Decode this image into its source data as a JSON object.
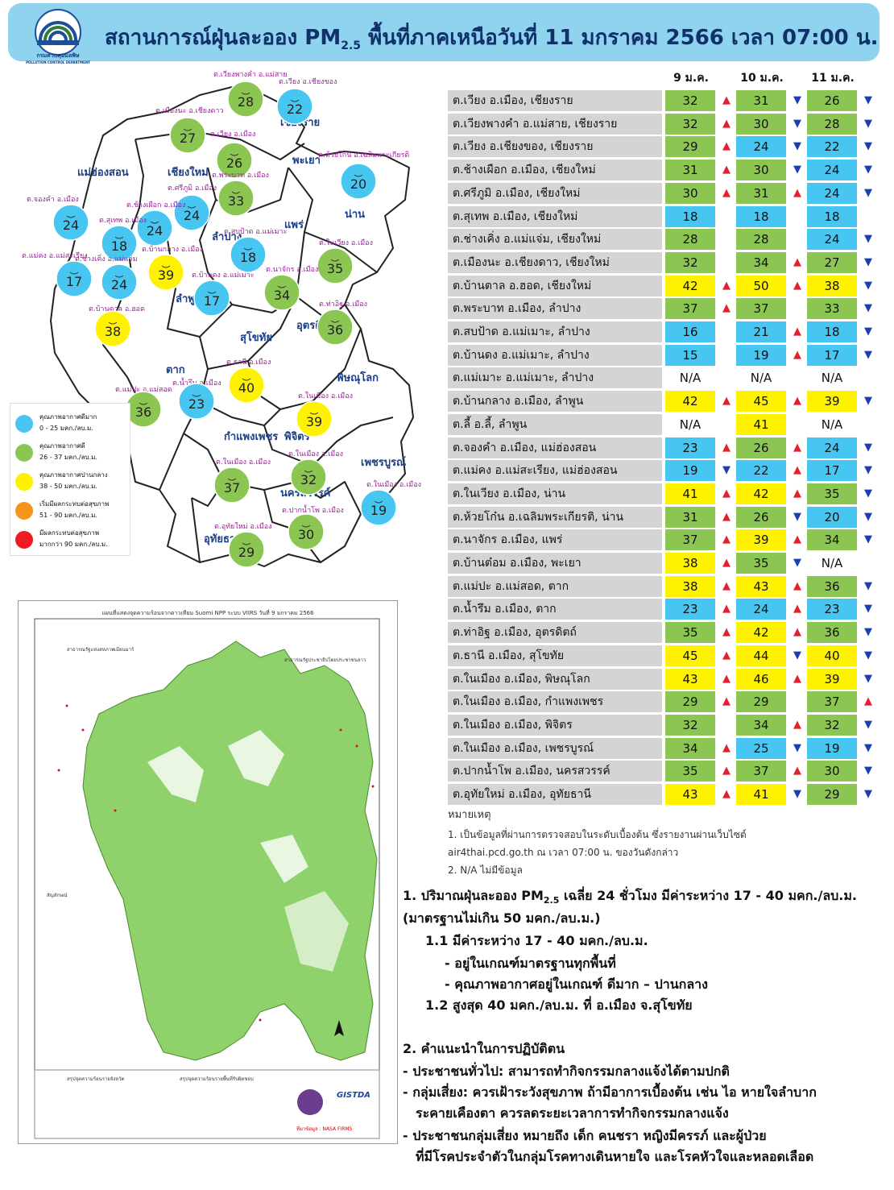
{
  "header": {
    "logo_label": "กรมควบคุมมลพิษ",
    "logo_sub": "POLLUTION CONTROL DEPARTMENT",
    "title_pre": "สถานการณ์ฝุ่นละออง PM",
    "title_sub": "2.5",
    "title_post": " พื้นที่ภาคเหนือวันที่ 11 มกราคม 2566 เวลา 07:00 น."
  },
  "colors": {
    "blue": "#47c6f2",
    "green": "#8cc652",
    "yellow": "#fff200",
    "orange": "#f7941d",
    "red": "#ed1c24",
    "header": "#8fd3ef"
  },
  "legend": [
    {
      "label": "คุณภาพอากาศดีมาก",
      "range": "0 - 25 มคก./ลบ.ม.",
      "color": "#47c6f2"
    },
    {
      "label": "คุณภาพอากาศดี",
      "range": "26 - 37 มคก./ลบ.ม.",
      "color": "#8cc652"
    },
    {
      "label": "คุณภาพอากาศปานกลาง",
      "range": "38 - 50 มคก./ลบ.ม.",
      "color": "#fff200"
    },
    {
      "label": "เริ่มมีผลกระทบต่อสุขภาพ",
      "range": "51 - 90 มคก./ลบ.ม.",
      "color": "#f7941d"
    },
    {
      "label": "มีผลกระทบต่อสุขภาพ",
      "range": "มากกว่า 90 มคก./ลบ.ม.",
      "color": "#ed1c24"
    }
  ],
  "map_provinces": [
    {
      "name": "เชียงราย"
    },
    {
      "name": "แม่ฮ่องสอน"
    },
    {
      "name": "เชียงใหม่"
    },
    {
      "name": "พะเยา"
    },
    {
      "name": "น่าน"
    },
    {
      "name": "แพร่"
    },
    {
      "name": "ลำปาง"
    },
    {
      "name": "ลำพูน"
    },
    {
      "name": "อุตรดิตถ์"
    },
    {
      "name": "สุโขทัย"
    },
    {
      "name": "ตาก"
    },
    {
      "name": "พิษณุโลก"
    },
    {
      "name": "กำแพงเพชร"
    },
    {
      "name": "พิจิตร"
    },
    {
      "name": "เพชรบูรณ์"
    },
    {
      "name": "นครสวรรค์"
    },
    {
      "name": "อุทัยธานี"
    }
  ],
  "map_circles": [
    {
      "value": "28",
      "label": "ต.เวียงพางคำ อ.แม่สาย",
      "color": "#8cc652"
    },
    {
      "value": "22",
      "label": "ต.เวียง อ.เชียงของ",
      "color": "#47c6f2"
    },
    {
      "value": "27",
      "label": "ต.เมืองนะ อ.เชียงดาว",
      "color": "#8cc652"
    },
    {
      "value": "26",
      "label": "ต.เวียง อ.เมือง",
      "color": "#8cc652"
    },
    {
      "value": "20",
      "label": "ต.ห้วยโก๋น อ.เฉลิมพระเกียรติ",
      "color": "#47c6f2"
    },
    {
      "value": "33",
      "label": "ต.พระบาท อ.เมือง",
      "color": "#8cc652"
    },
    {
      "value": "24",
      "label": "ต.ศรีภูมิ อ.เมือง",
      "color": "#47c6f2"
    },
    {
      "value": "24",
      "label": "ต.จองคำ อ.เมือง",
      "color": "#47c6f2"
    },
    {
      "value": "24",
      "label": "ต.ช้างเผือก อ.เมือง",
      "color": "#47c6f2"
    },
    {
      "value": "18",
      "label": "ต.สุเทพ อ.เมือง",
      "color": "#47c6f2"
    },
    {
      "value": "18",
      "label": "ต.สบป้าด อ.แม่เมาะ",
      "color": "#47c6f2"
    },
    {
      "value": "35",
      "label": "ต.ในเวียง อ.เมือง",
      "color": "#8cc652"
    },
    {
      "value": "17",
      "label": "ต.แม่คง อ.แม่สะเรียง",
      "color": "#47c6f2"
    },
    {
      "value": "24",
      "label": "ต.ช่างเคิ่ง อ.แม่แจ่ม",
      "color": "#47c6f2"
    },
    {
      "value": "39",
      "label": "ต.บ้านกลาง อ.เมือง",
      "color": "#fff200"
    },
    {
      "value": "17",
      "label": "ต.บ้านดง อ.แม่เมาะ",
      "color": "#47c6f2"
    },
    {
      "value": "34",
      "label": "ต.นาจักร อ.เมือง",
      "color": "#8cc652"
    },
    {
      "value": "38",
      "label": "ต.บ้านตาล อ.ฮอด",
      "color": "#fff200"
    },
    {
      "value": "36",
      "label": "ต.ท่าอิฐ อ.เมือง",
      "color": "#8cc652"
    },
    {
      "value": "40",
      "label": "ต.ธานี อ.เมือง",
      "color": "#fff200"
    },
    {
      "value": "36",
      "label": "ต.แม่ปะ อ.แม่สอด",
      "color": "#8cc652"
    },
    {
      "value": "23",
      "label": "ต.น้ำรึม อ.เมือง",
      "color": "#47c6f2"
    },
    {
      "value": "39",
      "label": "ต.ในเมือง อ.เมือง",
      "color": "#fff200"
    },
    {
      "value": "37",
      "label": "ต.ในเมือง อ.เมือง",
      "color": "#8cc652"
    },
    {
      "value": "32",
      "label": "ต.ในเมือง อ.เมือง",
      "color": "#8cc652"
    },
    {
      "value": "19",
      "label": "ต.ในเมือง อ.เมือง",
      "color": "#47c6f2"
    },
    {
      "value": "29",
      "label": "ต.อุทัยใหม่ อ.เมือง",
      "color": "#8cc652"
    },
    {
      "value": "30",
      "label": "ต.ปากน้ำโพ อ.เมือง",
      "color": "#8cc652"
    }
  ],
  "satellite_map": {
    "title": "แผนที่แสดงจุดความร้อนจากดาวเทียม Suomi NPP ระบบ VIIRS วันที่ 9 มกราคม 2566",
    "label_myanmar": "สาธารณรัฐแห่งสหภาพเมียนมาร์",
    "label_laos": "สาธารณรัฐประชาธิปไตยประชาชนลาว",
    "legend_title": "สัญลักษณ์",
    "summary_left": "สรุปจุดความร้อนรายจังหวัด",
    "summary_right": "สรุปจุดความร้อนรายพื้นที่รับผิดชอบ",
    "source": "ที่มาข้อมูล : NASA FIRMS",
    "gistda": "GISTDA"
  },
  "table": {
    "headers": [
      "9 ม.ค.",
      "10 ม.ค.",
      "11 ม.ค."
    ],
    "rows": [
      {
        "station": "ต.เวียง อ.เมือง, เชียงราย",
        "v": [
          "32",
          "31",
          "26"
        ],
        "c": [
          "g",
          "g",
          "g"
        ],
        "a": [
          "up",
          "down",
          "down"
        ]
      },
      {
        "station": "ต.เวียงพางคำ อ.แม่สาย, เชียงราย",
        "v": [
          "32",
          "30",
          "28"
        ],
        "c": [
          "g",
          "g",
          "g"
        ],
        "a": [
          "up",
          "down",
          "down"
        ]
      },
      {
        "station": "ต.เวียง อ.เชียงของ, เชียงราย",
        "v": [
          "29",
          "24",
          "22"
        ],
        "c": [
          "g",
          "b",
          "b"
        ],
        "a": [
          "up",
          "down",
          "down"
        ]
      },
      {
        "station": "ต.ช้างเผือก อ.เมือง, เชียงใหม่",
        "v": [
          "31",
          "30",
          "24"
        ],
        "c": [
          "g",
          "g",
          "b"
        ],
        "a": [
          "up",
          "down",
          "down"
        ]
      },
      {
        "station": "ต.ศรีภูมิ อ.เมือง, เชียงใหม่",
        "v": [
          "30",
          "31",
          "24"
        ],
        "c": [
          "g",
          "g",
          "b"
        ],
        "a": [
          "up",
          "up",
          "down"
        ]
      },
      {
        "station": "ต.สุเทพ อ.เมือง, เชียงใหม่",
        "v": [
          "18",
          "18",
          "18"
        ],
        "c": [
          "b",
          "b",
          "b"
        ],
        "a": [
          "",
          "",
          ""
        ]
      },
      {
        "station": "ต.ช่างเคิ่ง อ.แม่แจ่ม, เชียงใหม่",
        "v": [
          "28",
          "28",
          "24"
        ],
        "c": [
          "g",
          "g",
          "b"
        ],
        "a": [
          "",
          "",
          "down"
        ]
      },
      {
        "station": "ต.เมืองนะ อ.เชียงดาว, เชียงใหม่",
        "v": [
          "32",
          "34",
          "27"
        ],
        "c": [
          "g",
          "g",
          "g"
        ],
        "a": [
          "",
          "up",
          "down"
        ]
      },
      {
        "station": "ต.บ้านตาล อ.ฮอด, เชียงใหม่",
        "v": [
          "42",
          "50",
          "38"
        ],
        "c": [
          "y",
          "y",
          "y"
        ],
        "a": [
          "up",
          "up",
          "down"
        ]
      },
      {
        "station": "ต.พระบาท อ.เมือง, ลำปาง",
        "v": [
          "37",
          "37",
          "33"
        ],
        "c": [
          "g",
          "g",
          "g"
        ],
        "a": [
          "up",
          "",
          "down"
        ]
      },
      {
        "station": "ต.สบป้าด อ.แม่เมาะ, ลำปาง",
        "v": [
          "16",
          "21",
          "18"
        ],
        "c": [
          "b",
          "b",
          "b"
        ],
        "a": [
          "",
          "up",
          "down"
        ]
      },
      {
        "station": "ต.บ้านดง อ.แม่เมาะ, ลำปาง",
        "v": [
          "15",
          "19",
          "17"
        ],
        "c": [
          "b",
          "b",
          "b"
        ],
        "a": [
          "",
          "up",
          "down"
        ]
      },
      {
        "station": "ต.แม่เมาะ อ.แม่เมาะ, ลำปาง",
        "v": [
          "N/A",
          "N/A",
          "N/A"
        ],
        "c": [
          "n",
          "n",
          "n"
        ],
        "a": [
          "",
          "",
          ""
        ]
      },
      {
        "station": "ต.บ้านกลาง อ.เมือง, ลำพูน",
        "v": [
          "42",
          "45",
          "39"
        ],
        "c": [
          "y",
          "y",
          "y"
        ],
        "a": [
          "up",
          "up",
          "down"
        ]
      },
      {
        "station": "ต.ลี้ อ.ลี้, ลำพูน",
        "v": [
          "N/A",
          "41",
          "N/A"
        ],
        "c": [
          "n",
          "y",
          "n"
        ],
        "a": [
          "",
          "",
          ""
        ]
      },
      {
        "station": "ต.จองคำ อ.เมือง, แม่ฮ่องสอน",
        "v": [
          "23",
          "26",
          "24"
        ],
        "c": [
          "b",
          "g",
          "b"
        ],
        "a": [
          "up",
          "up",
          "down"
        ]
      },
      {
        "station": "ต.แม่คง อ.แม่สะเรียง, แม่ฮ่องสอน",
        "v": [
          "19",
          "22",
          "17"
        ],
        "c": [
          "b",
          "b",
          "b"
        ],
        "a": [
          "down",
          "up",
          "down"
        ]
      },
      {
        "station": "ต.ในเวียง อ.เมือง, น่าน",
        "v": [
          "41",
          "42",
          "35"
        ],
        "c": [
          "y",
          "y",
          "g"
        ],
        "a": [
          "up",
          "up",
          "down"
        ]
      },
      {
        "station": "ต.ห้วยโก๋น อ.เฉลิมพระเกียรติ, น่าน",
        "v": [
          "31",
          "26",
          "20"
        ],
        "c": [
          "g",
          "g",
          "b"
        ],
        "a": [
          "up",
          "down",
          "down"
        ]
      },
      {
        "station": "ต.นาจักร อ.เมือง, แพร่",
        "v": [
          "37",
          "39",
          "34"
        ],
        "c": [
          "g",
          "y",
          "g"
        ],
        "a": [
          "up",
          "up",
          "down"
        ]
      },
      {
        "station": "ต.บ้านต๋อม อ.เมือง, พะเยา",
        "v": [
          "38",
          "35",
          "N/A"
        ],
        "c": [
          "y",
          "g",
          "n"
        ],
        "a": [
          "up",
          "down",
          ""
        ]
      },
      {
        "station": "ต.แม่ปะ อ.แม่สอด, ตาก",
        "v": [
          "38",
          "43",
          "36"
        ],
        "c": [
          "y",
          "y",
          "g"
        ],
        "a": [
          "up",
          "up",
          "down"
        ]
      },
      {
        "station": "ต.น้ำรึม อ.เมือง, ตาก",
        "v": [
          "23",
          "24",
          "23"
        ],
        "c": [
          "b",
          "b",
          "b"
        ],
        "a": [
          "up",
          "up",
          "down"
        ]
      },
      {
        "station": "ต.ท่าอิฐ อ.เมือง, อุตรดิตถ์",
        "v": [
          "35",
          "42",
          "36"
        ],
        "c": [
          "g",
          "y",
          "g"
        ],
        "a": [
          "up",
          "up",
          "down"
        ]
      },
      {
        "station": "ต.ธานี อ.เมือง, สุโขทัย",
        "v": [
          "45",
          "44",
          "40"
        ],
        "c": [
          "y",
          "y",
          "y"
        ],
        "a": [
          "up",
          "down",
          "down"
        ]
      },
      {
        "station": "ต.ในเมือง อ.เมือง, พิษณุโลก",
        "v": [
          "43",
          "46",
          "39"
        ],
        "c": [
          "y",
          "y",
          "y"
        ],
        "a": [
          "up",
          "up",
          "down"
        ]
      },
      {
        "station": "ต.ในเมือง อ.เมือง, กำแพงเพชร",
        "v": [
          "29",
          "29",
          "37"
        ],
        "c": [
          "g",
          "g",
          "g"
        ],
        "a": [
          "up",
          "",
          "up"
        ]
      },
      {
        "station": "ต.ในเมือง อ.เมือง, พิจิตร",
        "v": [
          "32",
          "34",
          "32"
        ],
        "c": [
          "g",
          "g",
          "g"
        ],
        "a": [
          "",
          "up",
          "down"
        ]
      },
      {
        "station": "ต.ในเมือง อ.เมือง, เพชรบูรณ์",
        "v": [
          "34",
          "25",
          "19"
        ],
        "c": [
          "g",
          "b",
          "b"
        ],
        "a": [
          "up",
          "down",
          "down"
        ]
      },
      {
        "station": "ต.ปากน้ำโพ อ.เมือง, นครสวรรค์",
        "v": [
          "35",
          "37",
          "30"
        ],
        "c": [
          "g",
          "g",
          "g"
        ],
        "a": [
          "up",
          "up",
          "down"
        ]
      },
      {
        "station": "ต.อุทัยใหม่ อ.เมือง, อุทัยธานี",
        "v": [
          "43",
          "41",
          "29"
        ],
        "c": [
          "y",
          "y",
          "g"
        ],
        "a": [
          "up",
          "down",
          "down"
        ]
      }
    ]
  },
  "notes": {
    "heading": "หมายเหตุ",
    "n1a": "1. เป็นข้อมูลที่ผ่านการตรวจสอบในระดับเบื้องต้น ซึ่งรายงานผ่านเว็บไซต์",
    "n1b": "air4thai.pcd.go.th ณ เวลา 07:00 น. ของวันดังกล่าว",
    "n2": "2. N/A ไม่มีข้อมูล"
  },
  "summary": {
    "l1_pre": "1. ปริมาณฝุ่นละออง PM",
    "l1_sub": "2.5",
    "l1_post": " เฉลี่ย 24 ชั่วโมง มีค่าระหว่าง 17 - 40 มคก./ลบ.ม.",
    "l2": "(มาตรฐานไม่เกิน 50 มคก./ลบ.ม.)",
    "l3": "1.1 มีค่าระหว่าง 17 - 40 มคก./ลบ.ม.",
    "l4": "- อยู่ในเกณฑ์มาตรฐานทุกพื้นที่",
    "l5": "- คุณภาพอากาศอยู่ในเกณฑ์ ดีมาก – ปานกลาง",
    "l6": "1.2 สูงสุด 40 มคก./ลบ.ม. ที่ อ.เมือง จ.สุโขทัย",
    "l7": "2. คำแนะนำในการปฏิบัติตน",
    "l8": "- ประชาชนทั่วไป: สามารถทำกิจกรรมกลางแจ้งได้ตามปกติ",
    "l9": "- กลุ่มเสี่ยง: ควรเฝ้าระวังสุขภาพ ถ้ามีอาการเบื้องต้น เช่น ไอ หายใจลำบาก",
    "l10": "ระคายเคืองตา ควรลดระยะเวลาการทำกิจกรรมกลางแจ้ง",
    "l11": "- ประชาชนกลุ่มเสี่ยง หมายถึง เด็ก คนชรา หญิงมีครรภ์ และผู้ป่วย",
    "l12": "ที่มีโรคประจำตัวในกลุ่มโรคทางเดินหายใจ และโรคหัวใจและหลอดเลือด"
  }
}
